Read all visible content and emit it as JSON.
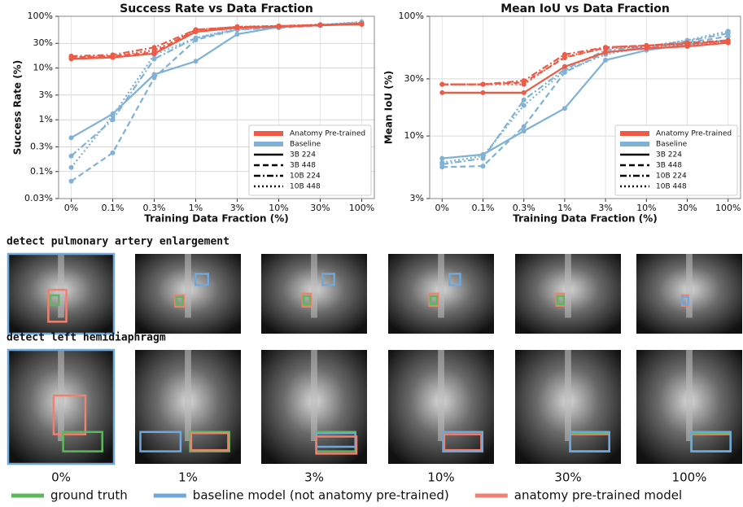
{
  "chart_data": [
    {
      "type": "line",
      "title": "Success Rate vs Data Fraction",
      "x_label": "Training Data Fraction (%)",
      "y_label": "Success Rate (%)",
      "categories": [
        "0%",
        "0.1%",
        "0.3%",
        "1%",
        "3%",
        "10%",
        "30%",
        "100%"
      ],
      "log_y": true,
      "grid": true,
      "ylim": [
        0.03,
        100
      ],
      "yticks": [
        {
          "value": 0.03,
          "label": "0.03%"
        },
        {
          "value": 0.1,
          "label": "0.1%"
        },
        {
          "value": 0.3,
          "label": "0.3%"
        },
        {
          "value": 1,
          "label": "1%"
        },
        {
          "value": 3,
          "label": "3%"
        },
        {
          "value": 10,
          "label": "10%"
        },
        {
          "value": 30,
          "label": "30%"
        },
        {
          "value": 100,
          "label": "100%"
        }
      ],
      "legend_loc": "lower right",
      "legend": {
        "colors": [
          {
            "label": "Anatomy Pre-trained",
            "color": "#ee5a45"
          },
          {
            "label": "Baseline",
            "color": "#7fb2d6"
          }
        ],
        "styles": [
          {
            "label": "3B 224",
            "dash": "solid"
          },
          {
            "label": "3B 448",
            "dash": "dashed"
          },
          {
            "label": "10B 224",
            "dash": "dashdot"
          },
          {
            "label": "10B 448",
            "dash": "dotted"
          }
        ]
      },
      "series": [
        {
          "color": "#7fb2d6",
          "dash": "solid",
          "values": [
            0.45,
            1.3,
            7.5,
            13.5,
            45,
            62,
            68,
            72
          ]
        },
        {
          "color": "#7fb2d6",
          "dash": "dashed",
          "values": [
            0.065,
            0.23,
            6.5,
            35,
            55,
            60,
            66,
            75
          ]
        },
        {
          "color": "#7fb2d6",
          "dash": "dashdot",
          "values": [
            0.2,
            1.0,
            15,
            38,
            55,
            62,
            68,
            76
          ]
        },
        {
          "color": "#7fb2d6",
          "dash": "dotted",
          "values": [
            0.12,
            1.2,
            18,
            38,
            58,
            62,
            68,
            78
          ]
        },
        {
          "color": "#ee5a45",
          "dash": "solid",
          "values": [
            15,
            16,
            19,
            50,
            60,
            63,
            67,
            70
          ]
        },
        {
          "color": "#ee5a45",
          "dash": "dashed",
          "values": [
            16,
            17,
            20,
            55,
            62,
            64,
            68,
            70
          ]
        },
        {
          "color": "#ee5a45",
          "dash": "dashdot",
          "values": [
            17,
            18,
            25,
            55,
            62,
            65,
            68,
            72
          ]
        },
        {
          "color": "#ee5a45",
          "dash": "dotted",
          "values": [
            16,
            17,
            22,
            52,
            63,
            65,
            69,
            71
          ]
        }
      ]
    },
    {
      "type": "line",
      "title": "Mean IoU vs Data Fraction",
      "x_label": "Training Data Fraction (%)",
      "y_label": "Mean IoU (%)",
      "categories": [
        "0%",
        "0.1%",
        "0.3%",
        "1%",
        "3%",
        "10%",
        "30%",
        "100%"
      ],
      "log_y": true,
      "grid": true,
      "ylim": [
        3,
        100
      ],
      "yticks": [
        {
          "value": 3,
          "label": "3%"
        },
        {
          "value": 10,
          "label": "10%"
        },
        {
          "value": 30,
          "label": "30%"
        },
        {
          "value": 100,
          "label": "100%"
        }
      ],
      "legend_loc": "lower right",
      "legend": {
        "colors": [
          {
            "label": "Anatomy Pre-trained",
            "color": "#ee5a45"
          },
          {
            "label": "Baseline",
            "color": "#7fb2d6"
          }
        ],
        "styles": [
          {
            "label": "3B 224",
            "dash": "solid"
          },
          {
            "label": "3B 448",
            "dash": "dashed"
          },
          {
            "label": "10B 224",
            "dash": "dashdot"
          },
          {
            "label": "10B 448",
            "dash": "dotted"
          }
        ]
      },
      "series": [
        {
          "color": "#7fb2d6",
          "dash": "solid",
          "values": [
            6.5,
            7,
            11,
            17,
            43,
            52,
            58,
            63
          ]
        },
        {
          "color": "#7fb2d6",
          "dash": "dashed",
          "values": [
            5.5,
            5.6,
            12,
            34,
            50,
            55,
            60,
            68
          ]
        },
        {
          "color": "#7fb2d6",
          "dash": "dashdot",
          "values": [
            5.8,
            6.5,
            20,
            36,
            52,
            56,
            62,
            72
          ]
        },
        {
          "color": "#7fb2d6",
          "dash": "dotted",
          "values": [
            6,
            6.8,
            18,
            35,
            48,
            56,
            63,
            75
          ]
        },
        {
          "color": "#ee5a45",
          "dash": "solid",
          "values": [
            23,
            23,
            23,
            38,
            50,
            54,
            56,
            60
          ]
        },
        {
          "color": "#ee5a45",
          "dash": "dashed",
          "values": [
            27,
            27,
            28,
            45,
            55,
            57,
            59,
            62
          ]
        },
        {
          "color": "#ee5a45",
          "dash": "dashdot",
          "values": [
            27,
            27,
            29,
            48,
            55,
            57,
            60,
            63
          ]
        },
        {
          "color": "#ee5a45",
          "dash": "dotted",
          "values": [
            27,
            27,
            27,
            46,
            54,
            56,
            58,
            61
          ]
        }
      ]
    }
  ],
  "figure": {
    "tasks": [
      "detect pulmonary artery enlargement",
      "detect left hemidiaphragm"
    ],
    "columns": [
      "0%",
      "1%",
      "3%",
      "10%",
      "30%",
      "100%"
    ],
    "legend": [
      {
        "label": "ground truth",
        "color": "#5cb85c"
      },
      {
        "label": "baseline model (not anatomy pre-trained)",
        "color": "#6fa8dc"
      },
      {
        "label": "anatomy pre-trained model",
        "color": "#f08070"
      }
    ]
  }
}
